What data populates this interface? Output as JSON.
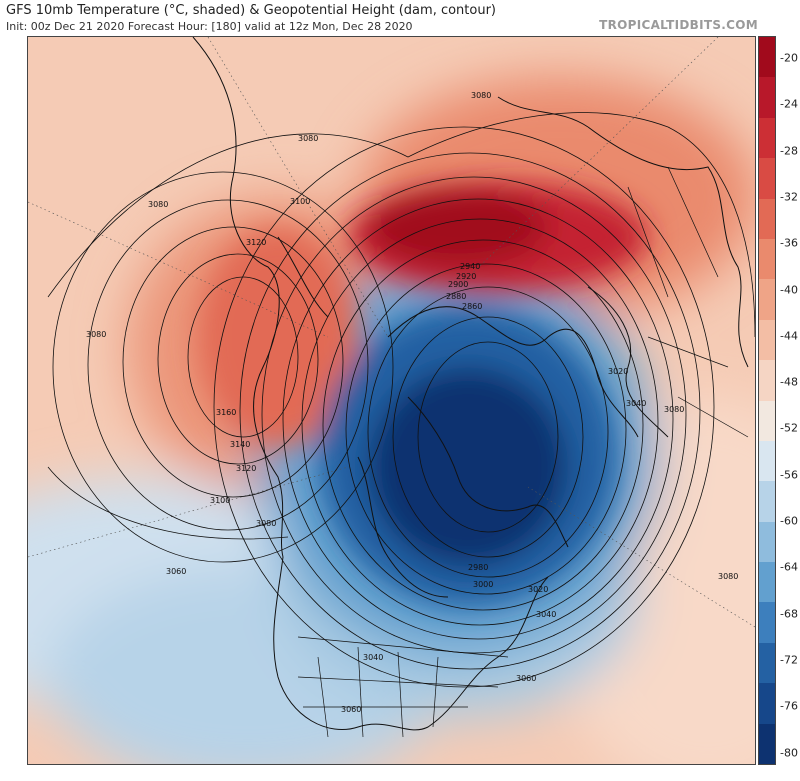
{
  "header": {
    "title": "GFS 10mb Temperature (°C, shaded) & Geopotential Height (dam, contour)",
    "subtitle": "Init: 00z Dec 21 2020   Forecast Hour: [180]   valid at 12z Mon, Dec 28 2020",
    "brand": "TROPICALTIDBITS.COM"
  },
  "colorbar": {
    "labels": [
      "-20",
      "-24",
      "-28",
      "-32",
      "-36",
      "-40",
      "-44",
      "-48",
      "-52",
      "-56",
      "-60",
      "-64",
      "-68",
      "-72",
      "-76",
      "-80"
    ],
    "colors": [
      "#a10a1c",
      "#b8182a",
      "#cc2f35",
      "#d94b44",
      "#e26a55",
      "#ea8a6d",
      "#efa487",
      "#f3bea5",
      "#f5d5c4",
      "#f2e8e0",
      "#d9e6f0",
      "#b7d3e8",
      "#8fbcdd",
      "#62a0cf",
      "#3d7fbd",
      "#2461a3",
      "#16478a",
      "#0d3270"
    ]
  },
  "map": {
    "contour_labels": [
      {
        "text": "3080",
        "id": "nw-3080a"
      },
      {
        "text": "3080",
        "id": "top-3080"
      },
      {
        "text": "3080",
        "id": "mid-3080"
      },
      {
        "text": "3100",
        "id": "ak-3100"
      },
      {
        "text": "3120",
        "id": "ak-3120"
      },
      {
        "text": "3080",
        "id": "w-3080"
      },
      {
        "text": "3160",
        "id": "ak-3160"
      },
      {
        "text": "3140",
        "id": "ak-3140"
      },
      {
        "text": "3120",
        "id": "ak-3120b"
      },
      {
        "text": "3100",
        "id": "ak-3100b"
      },
      {
        "text": "3080",
        "id": "ak-3080b"
      },
      {
        "text": "3060",
        "id": "pac-3060"
      },
      {
        "text": "2940",
        "id": "pole-2940"
      },
      {
        "text": "2920",
        "id": "pole-2920"
      },
      {
        "text": "2900",
        "id": "pole-2900"
      },
      {
        "text": "2880",
        "id": "pole-2880"
      },
      {
        "text": "2860",
        "id": "pole-2860"
      },
      {
        "text": "3020",
        "id": "eur-3020"
      },
      {
        "text": "3040",
        "id": "eur-3040"
      },
      {
        "text": "3080",
        "id": "eur-3080"
      },
      {
        "text": "3080",
        "id": "ne-3080"
      },
      {
        "text": "3060",
        "id": "se-3060"
      },
      {
        "text": "3040",
        "id": "atl-3040"
      },
      {
        "text": "3020",
        "id": "atl-3020"
      },
      {
        "text": "3040",
        "id": "us-3040"
      },
      {
        "text": "3060",
        "id": "us-3060"
      },
      {
        "text": "2980",
        "id": "ca-2980"
      },
      {
        "text": "3000",
        "id": "ca-3000"
      }
    ]
  }
}
